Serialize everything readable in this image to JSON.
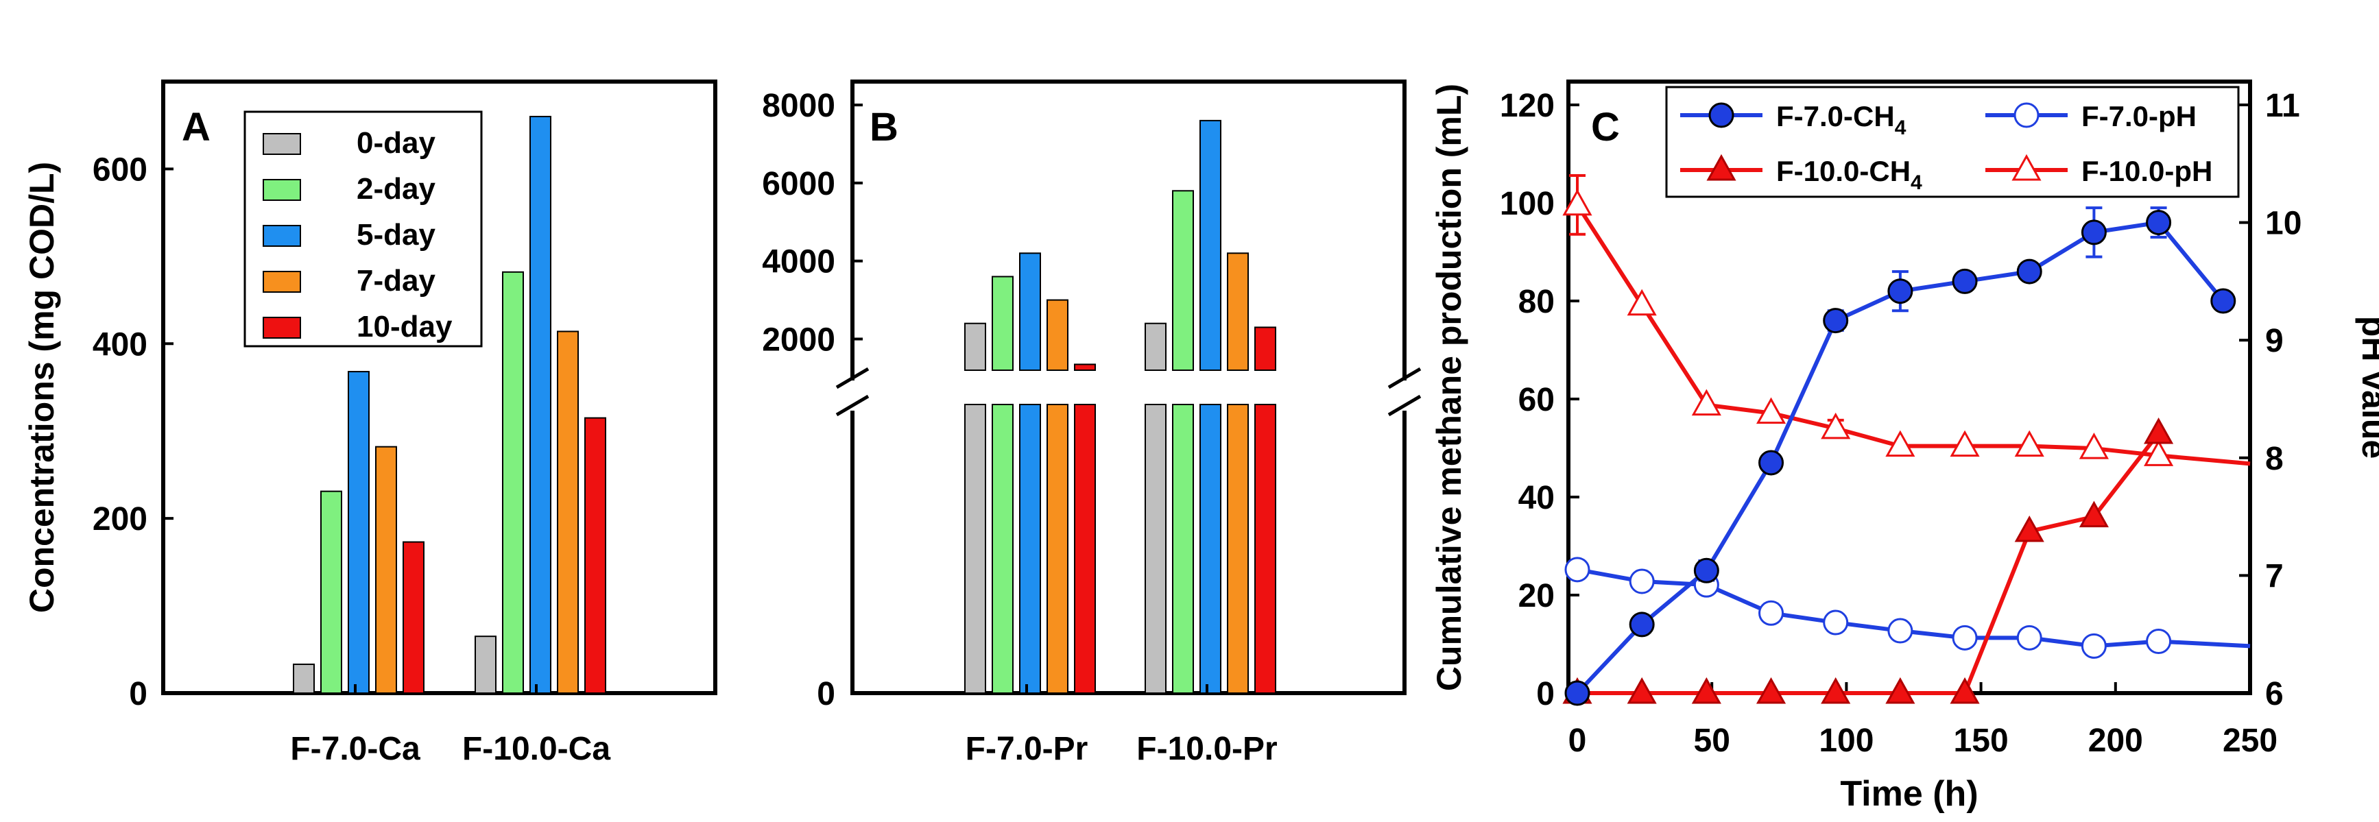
{
  "legend_series_colors": {
    "0-day": "#bfbfbf",
    "2-day": "#7ff07f",
    "5-day": "#1f8ff0",
    "7-day": "#f7901e",
    "10-day": "#ee1111"
  },
  "chart_data": [
    {
      "panel": "A",
      "type": "bar",
      "title": "",
      "xlabel": "",
      "ylabel": "Concentrations (mg COD/L)",
      "ylim": [
        0,
        700
      ],
      "yticks": [
        "0",
        "200",
        "400",
        "600"
      ],
      "categories": [
        "F-7.0-Ca",
        "F-10.0-Ca"
      ],
      "series": [
        {
          "name": "0-day",
          "values": [
            33,
            65
          ]
        },
        {
          "name": "2-day",
          "values": [
            231,
            482
          ]
        },
        {
          "name": "5-day",
          "values": [
            368,
            660
          ]
        },
        {
          "name": "7-day",
          "values": [
            282,
            414
          ]
        },
        {
          "name": "10-day",
          "values": [
            173,
            315
          ]
        }
      ],
      "legend": "top-left",
      "grid": false
    },
    {
      "panel": "B",
      "type": "bar",
      "title": "",
      "xlabel": "",
      "ylabel": "",
      "axis_break": true,
      "ylim_upper": [
        1200,
        8600
      ],
      "yticks": [
        "0",
        "2000",
        "4000",
        "6000",
        "8000"
      ],
      "categories": [
        "F-7.0-Pr",
        "F-10.0-Pr"
      ],
      "series": [
        {
          "name": "0-day",
          "values": [
            2400,
            2400
          ]
        },
        {
          "name": "2-day",
          "values": [
            3600,
            5800
          ]
        },
        {
          "name": "5-day",
          "values": [
            4200,
            7600
          ]
        },
        {
          "name": "7-day",
          "values": [
            3000,
            4200
          ]
        },
        {
          "name": "10-day",
          "values": [
            1350,
            2300
          ]
        }
      ],
      "grid": false
    },
    {
      "panel": "C",
      "type": "line",
      "title": "",
      "xlabel": "Time (h)",
      "ylabel": "Cumulative methane production (mL)",
      "y2label": "pH value",
      "xlim": [
        0,
        250
      ],
      "ylim": [
        0,
        120
      ],
      "y2lim": [
        6,
        11
      ],
      "xticks": [
        "0",
        "50",
        "100",
        "150",
        "200",
        "250"
      ],
      "yticks": [
        "0",
        "20",
        "40",
        "60",
        "80",
        "100",
        "120"
      ],
      "y2ticks": [
        "6",
        "7",
        "8",
        "9",
        "10",
        "11"
      ],
      "legend_labels": {
        "ch4_7": {
          "base": "F-7.0-CH",
          "sub": "4"
        },
        "ph_7": {
          "base": "F-7.0-pH",
          "sub": ""
        },
        "ch4_10": {
          "base": "F-10.0-CH",
          "sub": "4"
        },
        "ph_10": {
          "base": "F-10.0-pH",
          "sub": ""
        }
      },
      "series": [
        {
          "name": "F-7.0-CH4",
          "axis": "left",
          "color": "#1f3fe0",
          "marker": "circle-filled",
          "x": [
            0,
            24,
            48,
            72,
            96,
            120,
            144,
            168,
            192,
            216,
            240
          ],
          "y": [
            0,
            14,
            25,
            47,
            76,
            82,
            84,
            86,
            94,
            96,
            80
          ],
          "err": [
            0,
            0,
            2,
            0,
            2,
            4,
            0,
            0,
            5,
            3,
            0
          ]
        },
        {
          "name": "F-10.0-CH4",
          "axis": "left",
          "color": "#ee1111",
          "marker": "triangle-filled",
          "x": [
            0,
            24,
            48,
            72,
            96,
            120,
            144,
            168,
            192,
            216
          ],
          "y": [
            0,
            0,
            0,
            0,
            0,
            0,
            0,
            33,
            36,
            53
          ],
          "err": [
            0,
            0,
            0,
            0,
            0,
            0,
            0,
            0,
            0,
            0
          ]
        },
        {
          "name": "F-7.0-pH",
          "axis": "right",
          "color": "#1f3fe0",
          "marker": "circle-open",
          "x": [
            0,
            24,
            48,
            72,
            96,
            120,
            144,
            168,
            192,
            216,
            250
          ],
          "y": [
            7.05,
            6.95,
            6.92,
            6.68,
            6.6,
            6.53,
            6.47,
            6.47,
            6.4,
            6.44,
            6.4
          ],
          "markers": [
            true,
            true,
            true,
            true,
            true,
            true,
            true,
            true,
            true,
            true,
            false
          ]
        },
        {
          "name": "F-10.0-pH",
          "axis": "right",
          "color": "#ee1111",
          "marker": "triangle-open",
          "x": [
            0,
            24,
            48,
            72,
            96,
            120,
            144,
            168,
            192,
            216,
            250
          ],
          "y": [
            10.15,
            9.3,
            8.45,
            8.38,
            8.25,
            8.1,
            8.1,
            8.1,
            8.08,
            8.02,
            7.95
          ],
          "err": [
            0.25,
            0,
            0,
            0,
            0.07,
            0,
            0,
            0,
            0,
            0,
            0
          ],
          "markers": [
            true,
            true,
            true,
            true,
            true,
            true,
            true,
            true,
            true,
            true,
            false
          ]
        }
      ],
      "legend": "top-center",
      "grid": false
    }
  ]
}
